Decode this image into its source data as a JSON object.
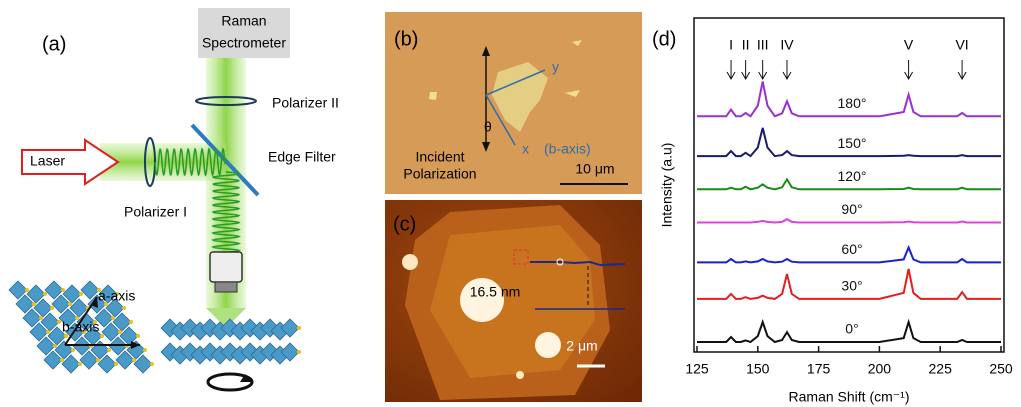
{
  "panels": {
    "a": {
      "label": "(a)",
      "spectrometer": [
        "Raman",
        "Spectrometer"
      ],
      "polarizer_2": "Polarizer II",
      "laser": "Laser",
      "edge_filter": "Edge Filter",
      "polarizer_1": "Polarizer I",
      "a_axis": "a-axis",
      "b_axis": "b-axis"
    },
    "b": {
      "label": "(b)",
      "y": "y",
      "theta": "θ",
      "x": "x",
      "x_note": "(b-axis)",
      "incident": [
        "Incident",
        "Polarization"
      ],
      "scale": "10 μm"
    },
    "c": {
      "label": "(c)",
      "height": "16.5 nm",
      "scale": "2 μm"
    }
  },
  "chart_data": {
    "type": "line",
    "panel_label": "(d)",
    "x_label": "Raman Shift (cm⁻¹)",
    "y_label": "Intensity (a.u)",
    "xlim": [
      125,
      250
    ],
    "xticks": [
      125,
      150,
      175,
      200,
      225,
      250
    ],
    "ylim": [
      0,
      100
    ],
    "x": [
      125,
      137,
      139,
      141,
      143,
      145,
      147,
      150,
      152,
      154,
      157,
      160,
      162,
      164,
      167,
      200,
      210,
      212,
      214,
      217,
      230,
      232,
      234,
      236,
      250
    ],
    "series": [
      {
        "name": "0°",
        "color": "#111111",
        "values": [
          3,
          3,
          4.5,
          3,
          3,
          3.5,
          3,
          4.8,
          9,
          4.8,
          3,
          3.6,
          6,
          3.6,
          3,
          3,
          4.2,
          9,
          4.2,
          3,
          3,
          3,
          3.6,
          3,
          3
        ]
      },
      {
        "name": "30°",
        "color": "#e02020",
        "values": [
          16,
          16,
          17.5,
          16,
          16,
          16.5,
          16,
          16.3,
          17,
          16.3,
          16,
          17.5,
          23.5,
          17.5,
          16,
          16,
          17.8,
          25,
          17.8,
          16,
          16,
          16,
          18,
          16,
          16
        ]
      },
      {
        "name": "60°",
        "color": "#1f1fd0",
        "values": [
          27,
          27,
          28,
          27,
          27,
          27.3,
          27,
          27.3,
          28,
          27.3,
          27,
          27.2,
          28,
          27.2,
          27,
          27,
          27.9,
          31.5,
          27.9,
          27,
          27,
          27,
          28,
          27,
          27
        ]
      },
      {
        "name": "90°",
        "color": "#e040e0",
        "values": [
          39,
          39,
          39,
          39,
          39,
          39,
          39,
          39.2,
          39.5,
          39.2,
          39,
          39.2,
          40,
          39.2,
          39,
          39,
          39.1,
          39.3,
          39.1,
          39,
          39,
          39,
          39.3,
          39,
          39
        ]
      },
      {
        "name": "120°",
        "color": "#1a8a1a",
        "values": [
          49,
          49,
          49.5,
          49,
          49,
          49.8,
          49,
          49.5,
          50.5,
          49.5,
          49,
          49.6,
          52,
          49.6,
          49,
          49,
          49.1,
          49.5,
          49.1,
          49,
          49,
          49,
          49.5,
          49,
          49
        ]
      },
      {
        "name": "150°",
        "color": "#1a1a6e",
        "values": [
          59,
          59,
          60.5,
          59,
          59,
          60,
          59,
          61.6,
          67.5,
          61.6,
          59,
          59.3,
          60.5,
          59.3,
          59,
          59,
          59.1,
          59.3,
          59.1,
          59,
          59,
          59,
          59.3,
          59,
          59
        ]
      },
      {
        "name": "180°",
        "color": "#9b30d0",
        "values": [
          71,
          71,
          73,
          71,
          71,
          72,
          71,
          74.2,
          81.5,
          74.2,
          71,
          71.9,
          75.5,
          71.9,
          71,
          71,
          72.3,
          77.5,
          72.3,
          71,
          71,
          71,
          72,
          71,
          71
        ]
      }
    ],
    "annotations": [
      {
        "label": "I",
        "x": 139
      },
      {
        "label": "II",
        "x": 145
      },
      {
        "label": "III",
        "x": 152
      },
      {
        "label": "IV",
        "x": 162
      },
      {
        "label": "V",
        "x": 212
      },
      {
        "label": "VI",
        "x": 234
      }
    ]
  }
}
